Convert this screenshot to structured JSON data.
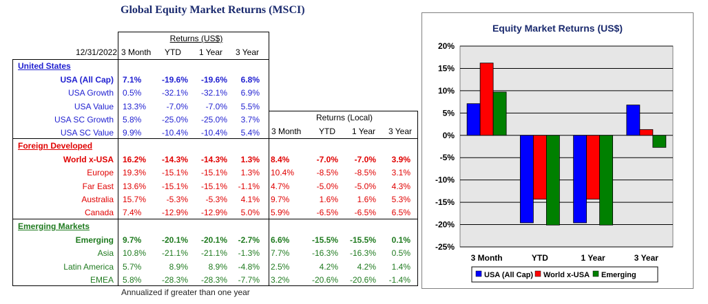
{
  "title": "Global Equity Market Returns (MSCI)",
  "date": "12/31/2022",
  "usd_group_label": "Returns (US$)",
  "local_group_label": "Returns (Local)",
  "period_headers": [
    "3 Month",
    "YTD",
    "1 Year",
    "3 Year"
  ],
  "sections": [
    {
      "name": "United States",
      "color": "#1f1fd0",
      "rows": [
        {
          "label": "USA (All Cap)",
          "bold": true,
          "usd": [
            "7.1%",
            "-19.6%",
            "-19.6%",
            "6.8%"
          ],
          "local": []
        },
        {
          "label": "USA Growth",
          "bold": false,
          "usd": [
            "0.5%",
            "-32.1%",
            "-32.1%",
            "6.9%"
          ],
          "local": []
        },
        {
          "label": "USA Value",
          "bold": false,
          "usd": [
            "13.3%",
            "-7.0%",
            "-7.0%",
            "5.5%"
          ],
          "local": []
        },
        {
          "label": "USA SC Growth",
          "bold": false,
          "usd": [
            "5.8%",
            "-25.0%",
            "-25.0%",
            "3.7%"
          ],
          "local": []
        },
        {
          "label": "USA SC Value",
          "bold": false,
          "usd": [
            "9.9%",
            "-10.4%",
            "-10.4%",
            "5.4%"
          ],
          "local": []
        }
      ]
    },
    {
      "name": "Foreign Developed",
      "color": "#e00000",
      "rows": [
        {
          "label": "World x-USA",
          "bold": true,
          "usd": [
            "16.2%",
            "-14.3%",
            "-14.3%",
            "1.3%"
          ],
          "local": [
            "8.4%",
            "-7.0%",
            "-7.0%",
            "3.9%"
          ]
        },
        {
          "label": "Europe",
          "bold": false,
          "usd": [
            "19.3%",
            "-15.1%",
            "-15.1%",
            "1.3%"
          ],
          "local": [
            "10.4%",
            "-8.5%",
            "-8.5%",
            "3.1%"
          ]
        },
        {
          "label": "Far East",
          "bold": false,
          "usd": [
            "13.6%",
            "-15.1%",
            "-15.1%",
            "-1.1%"
          ],
          "local": [
            "4.7%",
            "-5.0%",
            "-5.0%",
            "4.3%"
          ]
        },
        {
          "label": "Australia",
          "bold": false,
          "usd": [
            "15.7%",
            "-5.3%",
            "-5.3%",
            "4.1%"
          ],
          "local": [
            "9.7%",
            "1.6%",
            "1.6%",
            "5.3%"
          ]
        },
        {
          "label": "Canada",
          "bold": false,
          "usd": [
            "7.4%",
            "-12.9%",
            "-12.9%",
            "5.0%"
          ],
          "local": [
            "5.9%",
            "-6.5%",
            "-6.5%",
            "6.5%"
          ]
        }
      ]
    },
    {
      "name": "Emerging Markets",
      "color": "#1f7a1f",
      "rows": [
        {
          "label": "Emerging",
          "bold": true,
          "usd": [
            "9.7%",
            "-20.1%",
            "-20.1%",
            "-2.7%"
          ],
          "local": [
            "6.6%",
            "-15.5%",
            "-15.5%",
            "0.1%"
          ]
        },
        {
          "label": "Asia",
          "bold": false,
          "usd": [
            "10.8%",
            "-21.1%",
            "-21.1%",
            "-1.3%"
          ],
          "local": [
            "7.7%",
            "-16.3%",
            "-16.3%",
            "0.5%"
          ]
        },
        {
          "label": "Latin America",
          "bold": false,
          "usd": [
            "5.7%",
            "8.9%",
            "8.9%",
            "-4.8%"
          ],
          "local": [
            "2.5%",
            "4.2%",
            "4.2%",
            "1.4%"
          ]
        },
        {
          "label": "EMEA",
          "bold": false,
          "usd": [
            "5.8%",
            "-28.3%",
            "-28.3%",
            "-7.7%"
          ],
          "local": [
            "3.2%",
            "-20.6%",
            "-20.6%",
            "-1.4%"
          ]
        }
      ]
    }
  ],
  "footnote": "Annualized if greater than one year",
  "chart_data": {
    "type": "bar",
    "title": "Equity Market Returns (US$)",
    "categories": [
      "3 Month",
      "YTD",
      "1 Year",
      "3 Year"
    ],
    "series": [
      {
        "name": "USA (All Cap)",
        "color": "#0000ff",
        "values": [
          7.1,
          -19.6,
          -19.6,
          6.8
        ]
      },
      {
        "name": "World x-USA",
        "color": "#ff0000",
        "values": [
          16.2,
          -14.3,
          -14.3,
          1.3
        ]
      },
      {
        "name": "Emerging",
        "color": "#008000",
        "values": [
          9.7,
          -20.1,
          -20.1,
          -2.7
        ]
      }
    ],
    "ylim": [
      -25,
      20
    ],
    "yticks": [
      20,
      15,
      10,
      5,
      0,
      -5,
      -10,
      -15,
      -20,
      -25
    ],
    "ytick_labels": [
      "20%",
      "15%",
      "10%",
      "5%",
      "0%",
      "-5%",
      "-10%",
      "-15%",
      "-20%",
      "-25%"
    ],
    "grid": true,
    "legend": "bottom"
  }
}
